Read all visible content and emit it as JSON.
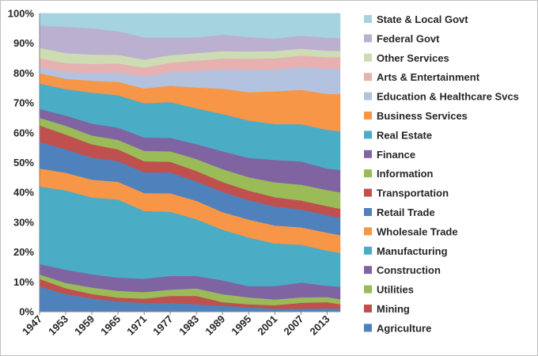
{
  "chart_data": {
    "type": "area",
    "stacked": true,
    "percent": true,
    "title": "",
    "xlabel": "",
    "ylabel": "",
    "ylim": [
      0,
      100
    ],
    "y_ticks": [
      "0%",
      "10%",
      "20%",
      "30%",
      "40%",
      "50%",
      "60%",
      "70%",
      "80%",
      "90%",
      "100%"
    ],
    "x_ticks": [
      "1947",
      "1953",
      "1959",
      "1965",
      "1971",
      "1977",
      "1983",
      "1989",
      "1995",
      "2001",
      "2007",
      "2013"
    ],
    "x": [
      1947,
      1953,
      1959,
      1965,
      1971,
      1977,
      1983,
      1989,
      1995,
      2001,
      2007,
      2013,
      2016
    ],
    "legend_position": "right",
    "series": [
      {
        "name": "Agriculture",
        "color": "#4f81bd",
        "values": [
          8.5,
          6.0,
          4.5,
          3.5,
          3.0,
          3.0,
          2.5,
          2.0,
          1.5,
          1.0,
          1.0,
          1.2,
          1.0
        ]
      },
      {
        "name": "Mining",
        "color": "#c0504d",
        "values": [
          2.5,
          2.0,
          1.5,
          1.3,
          1.4,
          2.3,
          2.8,
          1.2,
          1.0,
          1.2,
          2.0,
          2.0,
          1.5
        ]
      },
      {
        "name": "Utilities",
        "color": "#9bbb59",
        "values": [
          1.5,
          1.8,
          2.2,
          2.3,
          2.2,
          2.1,
          2.5,
          2.7,
          2.3,
          1.9,
          1.8,
          1.7,
          1.7
        ]
      },
      {
        "name": "Construction",
        "color": "#8064a2",
        "values": [
          3.5,
          4.5,
          4.5,
          4.5,
          4.5,
          4.6,
          4.2,
          4.6,
          3.8,
          4.5,
          5.0,
          3.8,
          4.2
        ]
      },
      {
        "name": "Manufacturing",
        "color": "#4bacc6",
        "values": [
          26.0,
          27.0,
          26.0,
          26.5,
          22.8,
          21.5,
          19.0,
          17.0,
          16.3,
          14.3,
          12.7,
          11.8,
          11.3
        ]
      },
      {
        "name": "Wholesale Trade",
        "color": "#f79646",
        "values": [
          6.0,
          6.0,
          6.0,
          6.0,
          6.0,
          6.2,
          6.2,
          5.9,
          6.0,
          6.0,
          5.8,
          6.0,
          6.0
        ]
      },
      {
        "name": "Retail Trade",
        "color": "#4f81bd",
        "values": [
          9.0,
          8.0,
          7.5,
          7.0,
          7.0,
          7.0,
          6.5,
          6.8,
          6.5,
          6.4,
          6.0,
          5.9,
          5.8
        ]
      },
      {
        "name": "Transportation",
        "color": "#c0504d",
        "values": [
          5.5,
          5.0,
          4.5,
          4.0,
          3.7,
          3.6,
          3.5,
          3.3,
          3.2,
          3.1,
          3.0,
          3.0,
          3.0
        ]
      },
      {
        "name": "Information",
        "color": "#9bbb59",
        "values": [
          2.5,
          3.0,
          3.0,
          3.2,
          3.5,
          3.5,
          4.0,
          4.3,
          4.5,
          5.0,
          5.3,
          5.4,
          5.5
        ]
      },
      {
        "name": "Finance",
        "color": "#8064a2",
        "values": [
          3.0,
          3.5,
          4.0,
          4.2,
          4.5,
          4.5,
          5.0,
          6.0,
          6.5,
          7.5,
          7.8,
          7.2,
          7.5
        ]
      },
      {
        "name": "Real Estate",
        "color": "#4bacc6",
        "values": [
          8.5,
          9.0,
          10.5,
          11.0,
          11.5,
          12.0,
          12.0,
          12.5,
          12.5,
          12.0,
          12.5,
          13.0,
          13.0
        ]
      },
      {
        "name": "Business Services",
        "color": "#f79646",
        "values": [
          3.5,
          3.5,
          4.0,
          4.5,
          5.0,
          5.5,
          7.0,
          8.5,
          9.5,
          11.0,
          11.5,
          12.0,
          12.5
        ]
      },
      {
        "name": "Education & Healthcare Svcs",
        "color": "#b3c3df",
        "values": [
          2.0,
          2.3,
          2.7,
          3.2,
          4.0,
          4.5,
          5.5,
          6.5,
          7.5,
          7.3,
          7.7,
          8.4,
          8.4
        ]
      },
      {
        "name": "Arts & Entertainment",
        "color": "#e6b1b0",
        "values": [
          3.0,
          3.0,
          3.0,
          3.0,
          3.0,
          3.2,
          3.5,
          3.6,
          3.7,
          3.8,
          3.8,
          3.9,
          3.9
        ]
      },
      {
        "name": "Other Services",
        "color": "#cddcb2",
        "values": [
          3.5,
          3.4,
          3.2,
          3.0,
          2.7,
          2.5,
          2.5,
          2.5,
          2.5,
          2.4,
          2.3,
          2.2,
          2.2
        ]
      },
      {
        "name": "Federal Govt",
        "color": "#bcb0d1",
        "values": [
          7.5,
          9.0,
          8.9,
          8.0,
          7.5,
          6.0,
          5.3,
          5.5,
          4.8,
          4.2,
          4.4,
          4.4,
          4.3
        ]
      },
      {
        "name": "State & Local Govt",
        "color": "#a5d3e0",
        "values": [
          4.0,
          4.5,
          5.0,
          6.0,
          8.0,
          8.0,
          8.0,
          7.1,
          7.9,
          8.4,
          7.4,
          8.1,
          8.2
        ]
      }
    ]
  }
}
